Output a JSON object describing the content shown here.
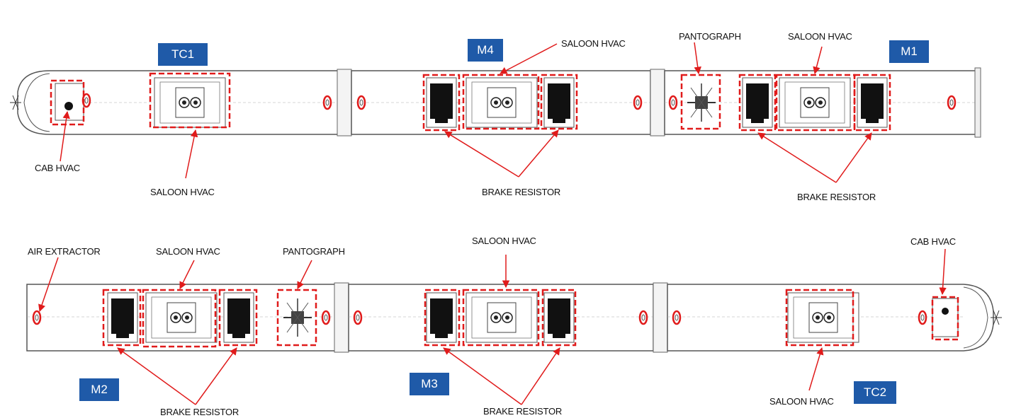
{
  "diagram": {
    "cars": {
      "tc1": "TC1",
      "m4": "M4",
      "m1": "M1",
      "m2": "M2",
      "m3": "M3",
      "tc2": "TC2"
    },
    "labels": {
      "saloon_hvac": "SALOON HVAC",
      "cab_hvac": "CAB HVAC",
      "pantograph": "PANTOGRAPH",
      "brake_resistor": "BRAKE RESISTOR",
      "air_extractor": "AIR EXTRACTOR"
    },
    "colors": {
      "tag": "#1f5aa8",
      "highlight": "#e01b1b",
      "outline": "#555555"
    }
  }
}
